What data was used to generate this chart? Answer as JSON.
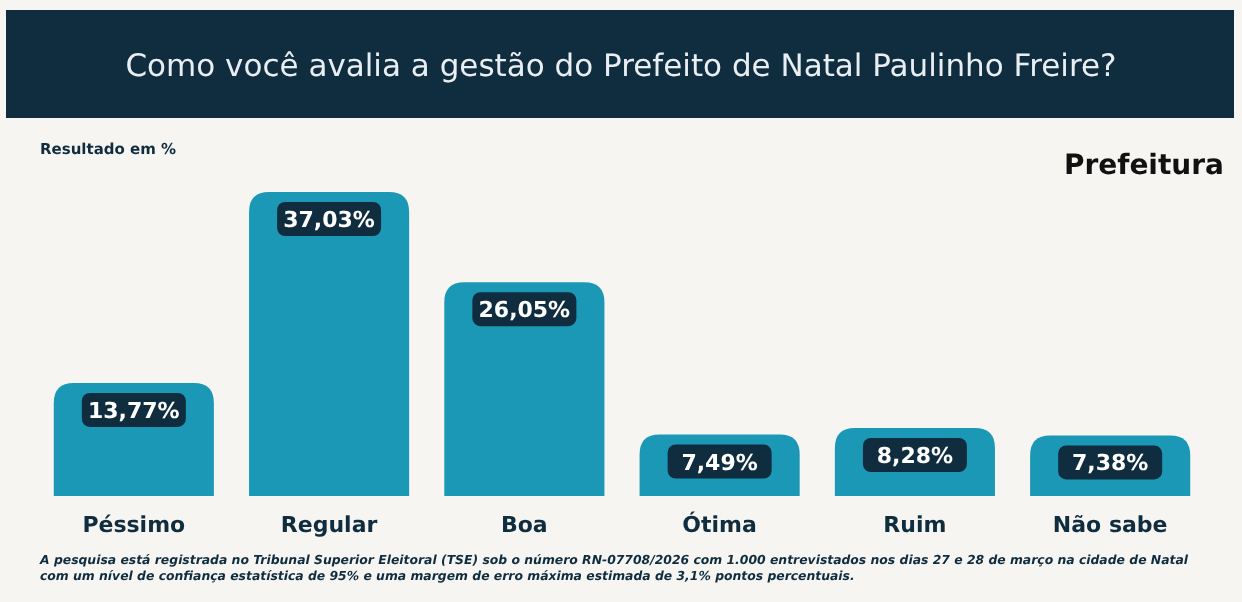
{
  "chart_data": {
    "type": "bar",
    "title": "Como você avalia a gestão do Prefeito de Natal Paulinho Freire?",
    "subtitle": "Prefeitura",
    "ylabel": "Resultado em %",
    "categories": [
      "Péssimo",
      "Regular",
      "Boa",
      "Ótima",
      "Ruim",
      "Não sabe"
    ],
    "values": [
      13.77,
      37.03,
      26.05,
      7.49,
      8.28,
      7.38
    ],
    "value_labels": [
      "13,77%",
      "37,03%",
      "26,05%",
      "7,49%",
      "8,28%",
      "7,38%"
    ],
    "color": "#1b98b6",
    "annotations": [
      "A pesquisa está registrada no Tribunal Superior Eleitoral (TSE) sob o número RN-07708/2026 com 1.000 entrevistados nos dias 27 e 28 de março na cidade de Natal com um nível de confiança estatística de 95% e uma margem de erro máxima estimada de 3,1% pontos percentuais."
    ]
  }
}
